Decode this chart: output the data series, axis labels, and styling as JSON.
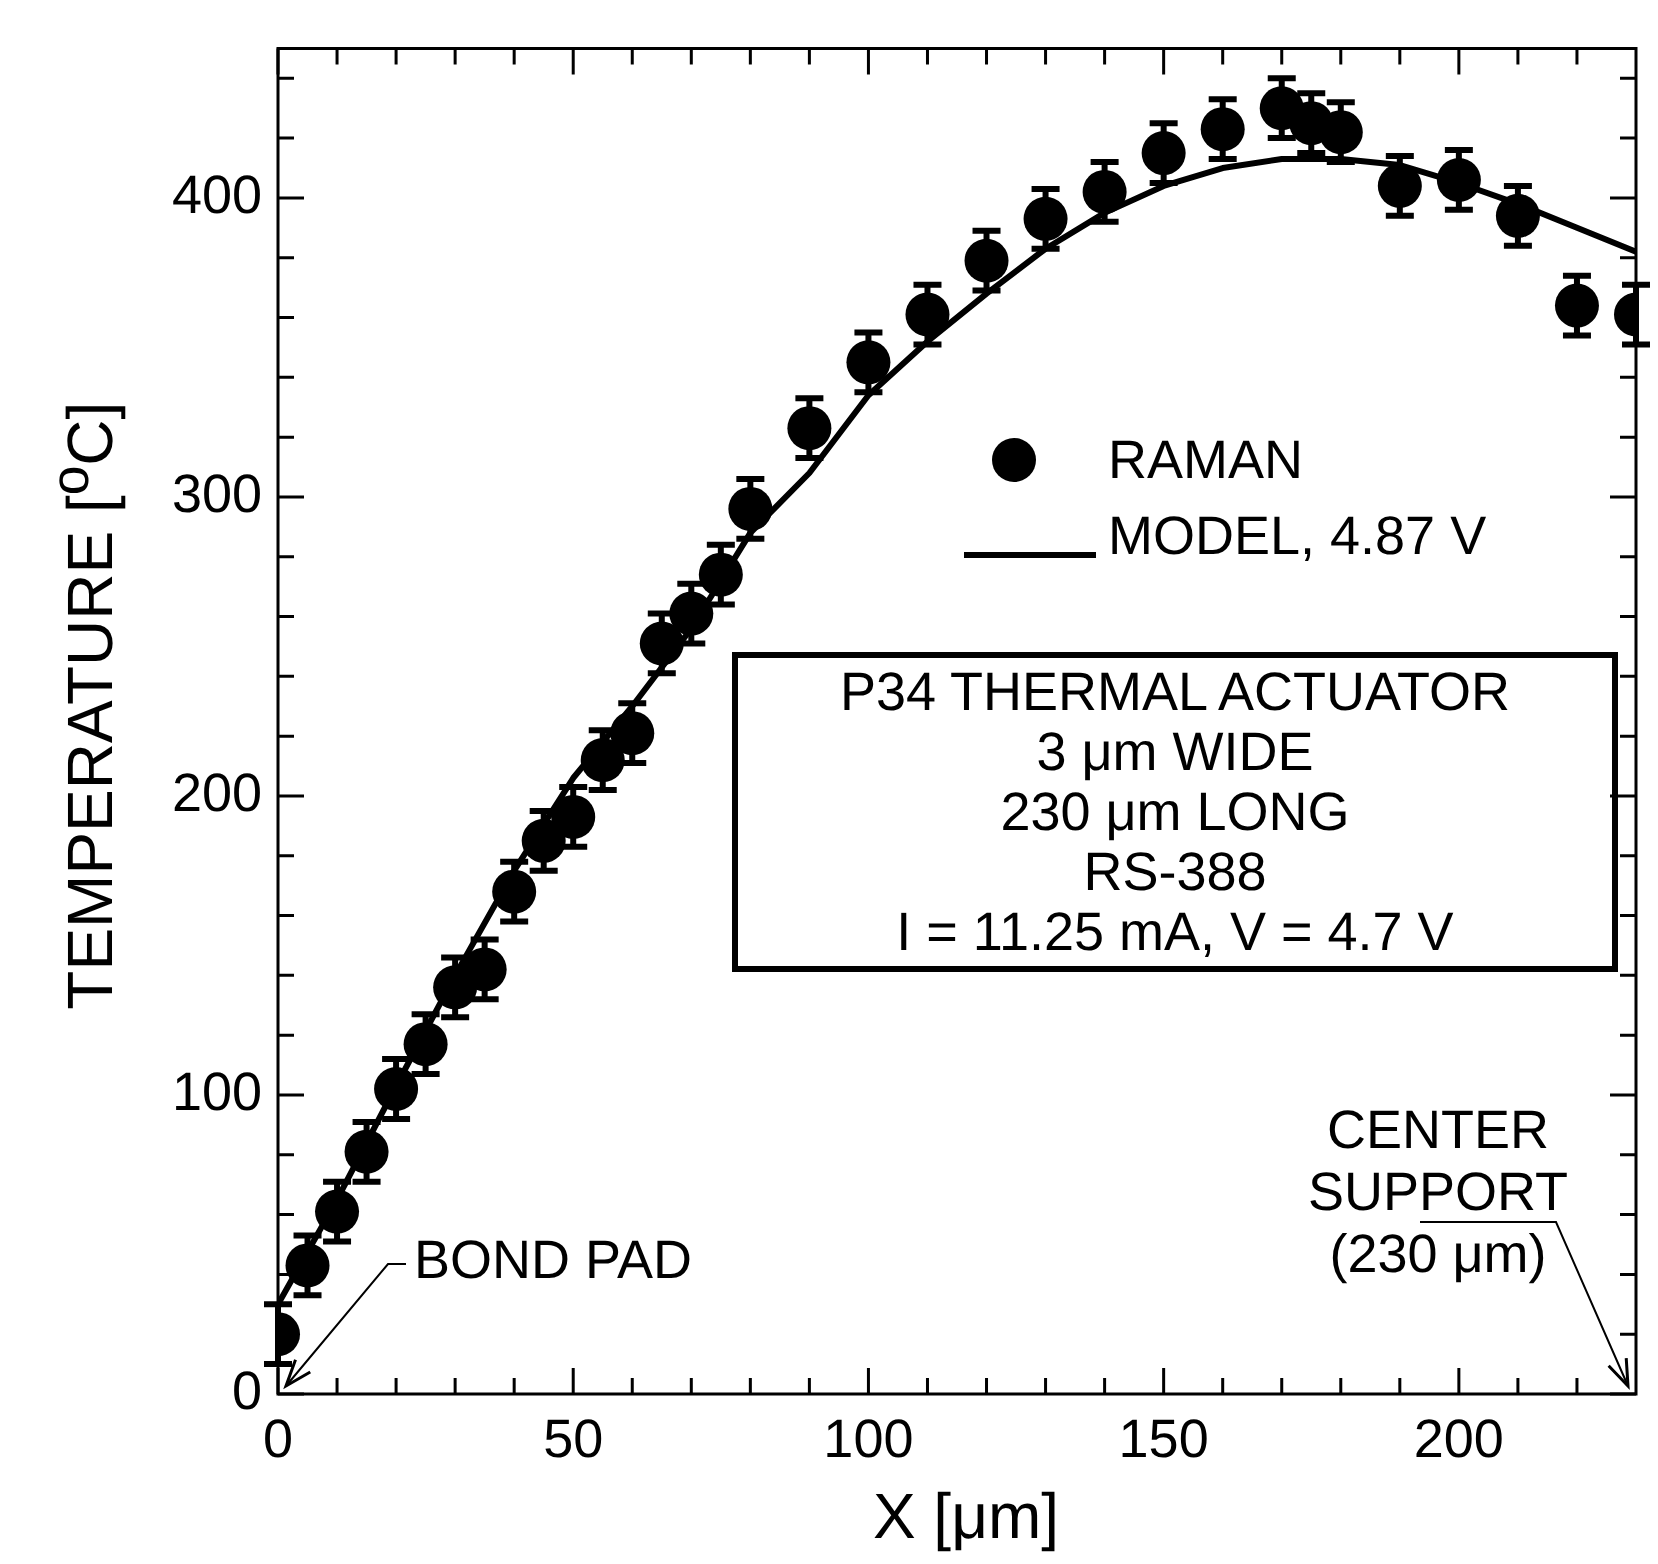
{
  "chart_data": {
    "type": "scatter",
    "xlabel": "X [μm]",
    "ylabel": "TEMPERATURE [$^{o}$C]",
    "xlim": [
      0,
      230
    ],
    "ylim": [
      0,
      450
    ],
    "xticks": [
      0,
      {
        "value": 10,
        "label": null
      },
      {
        "value": 20,
        "label": null
      },
      {
        "value": 30,
        "label": null
      },
      {
        "value": 40,
        "label": null
      },
      50,
      {
        "value": 60,
        "label": null
      },
      {
        "value": 70,
        "label": null
      },
      {
        "value": 80,
        "label": null
      },
      {
        "value": 90,
        "label": null
      },
      100,
      {
        "value": 110,
        "label": null
      },
      {
        "value": 120,
        "label": null
      },
      {
        "value": 130,
        "label": null
      },
      {
        "value": 140,
        "label": null
      },
      150,
      {
        "value": 160,
        "label": null
      },
      {
        "value": 170,
        "label": null
      },
      {
        "value": 180,
        "label": null
      },
      {
        "value": 190,
        "label": null
      },
      200,
      {
        "value": 210,
        "label": null
      },
      {
        "value": 220,
        "label": null
      }
    ],
    "yticks": [
      0,
      {
        "value": 20,
        "label": null
      },
      {
        "value": 40,
        "label": null
      },
      {
        "value": 60,
        "label": null
      },
      {
        "value": 80,
        "label": null
      },
      100,
      {
        "value": 120,
        "label": null
      },
      {
        "value": 140,
        "label": null
      },
      {
        "value": 160,
        "label": null
      },
      {
        "value": 180,
        "label": null
      },
      200,
      {
        "value": 220,
        "label": null
      },
      {
        "value": 240,
        "label": null
      },
      {
        "value": 260,
        "label": null
      },
      {
        "value": 280,
        "label": null
      },
      300,
      {
        "value": 320,
        "label": null
      },
      {
        "value": 340,
        "label": null
      },
      {
        "value": 360,
        "label": null
      },
      {
        "value": 380,
        "label": null
      },
      400,
      {
        "value": 420,
        "label": null
      },
      {
        "value": 440,
        "label": null
      }
    ],
    "legend": "right",
    "marker": "circle",
    "series": [
      {
        "name": "RAMAN",
        "color": "#000000",
        "x": [
          0,
          5,
          10,
          15,
          20,
          25,
          30,
          35,
          40,
          45,
          50,
          55,
          60,
          65,
          70,
          75,
          80,
          90,
          100,
          110,
          120,
          130,
          140,
          150,
          160,
          170,
          175,
          180,
          190,
          200,
          210,
          220,
          230
        ],
        "values": [
          20,
          43,
          61,
          81,
          102,
          117,
          136,
          142,
          168,
          185,
          193,
          212,
          221,
          251,
          261,
          274,
          296,
          323,
          345,
          361,
          379,
          393,
          402,
          415,
          423,
          430,
          425,
          422,
          404,
          406,
          394,
          364,
          361
        ],
        "errors": [
          10,
          10,
          10,
          10,
          10,
          10,
          10,
          10,
          10,
          10,
          10,
          10,
          10,
          10,
          10,
          10,
          10,
          10,
          10,
          10,
          10,
          10,
          10,
          10,
          10,
          10,
          10,
          10,
          10,
          10,
          10,
          10,
          10
        ]
      },
      {
        "name": "MODEL, 4.87 V",
        "type": "line",
        "color": "#000000",
        "marker": "none",
        "x": [
          0,
          10,
          20,
          30,
          40,
          50,
          60,
          70,
          80,
          90,
          100,
          110,
          120,
          130,
          140,
          150,
          160,
          170,
          180,
          190,
          200,
          210,
          220,
          230
        ],
        "values": [
          30,
          65,
          103,
          140,
          175,
          206,
          230,
          256,
          288,
          308,
          334,
          352,
          368,
          383,
          395,
          404,
          410,
          413,
          413,
          411,
          405,
          398,
          390,
          382
        ]
      }
    ],
    "annotations": [
      "P34 THERMAL ACTUATOR\n3 μm WIDE\n230 μm LONG\nRS-388\nI = 11.25 mA, V = 4.7 V",
      "BOND PAD",
      "CENTER\nSUPPORT\n(230 μm)"
    ]
  }
}
